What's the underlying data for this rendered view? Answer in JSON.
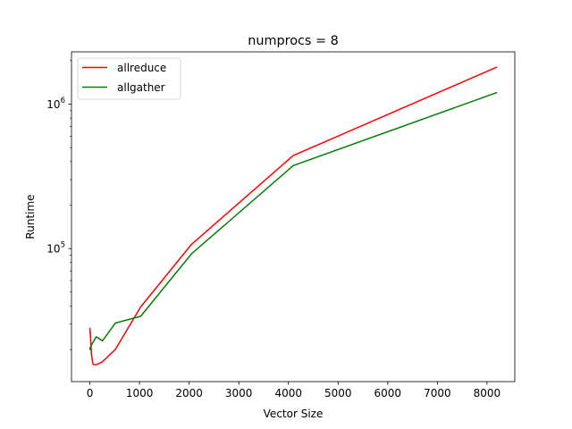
{
  "chart_data": {
    "type": "line",
    "title": "numprocs = 8",
    "xlabel": "Vector Size",
    "ylabel": "Runtime",
    "xlim": [
      -370,
      8560
    ],
    "ylim": [
      12000,
      2300000
    ],
    "yscale": "log",
    "grid": false,
    "legend_position": "top-left",
    "x_ticks": [
      0,
      1000,
      2000,
      3000,
      4000,
      5000,
      6000,
      7000,
      8000
    ],
    "x_tick_labels": [
      "0",
      "1000",
      "2000",
      "3000",
      "4000",
      "5000",
      "6000",
      "7000",
      "8000"
    ],
    "y_ticks": [
      {
        "value": 100000,
        "base": "10",
        "exp": "5"
      },
      {
        "value": 1000000,
        "base": "10",
        "exp": "6"
      }
    ],
    "series": [
      {
        "name": "allreduce",
        "color": "#ff0000",
        "x": [
          2,
          4,
          8,
          16,
          32,
          64,
          128,
          256,
          512,
          1024,
          2048,
          4096,
          8192
        ],
        "y": [
          28000,
          26000,
          26500,
          24000,
          18500,
          15800,
          15700,
          16500,
          20000,
          39500,
          107000,
          440000,
          1800000
        ]
      },
      {
        "name": "allgather",
        "color": "#008000",
        "x": [
          2,
          4,
          8,
          16,
          32,
          64,
          128,
          256,
          512,
          1024,
          2048,
          4096,
          8192
        ],
        "y": [
          20500,
          20000,
          20200,
          21000,
          21500,
          22500,
          24500,
          23000,
          30500,
          34000,
          92000,
          375000,
          1200000
        ]
      }
    ]
  }
}
